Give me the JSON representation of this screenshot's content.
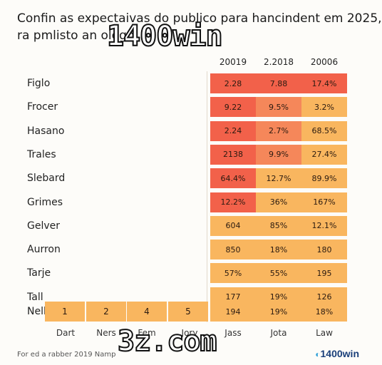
{
  "title": {
    "line1": "Confin as expectaivas do publico para hancindent em 2025,",
    "line2": "ra pmlisto an olegn"
  },
  "watermarks": {
    "top": "1400win",
    "bottom": "3z.com"
  },
  "footer_note": "For ed a rabber 2019 Namp",
  "logo": {
    "mark": "◐",
    "text": "1400win"
  },
  "colors": {
    "dark": "#f2614a",
    "mid": "#f5875a",
    "light": "#f9b65f",
    "cell_text": "#2a1a10"
  },
  "chart_data": {
    "type": "heatmap",
    "title": "Confin as expectaivas do publico para hancindent em 2025, ra pmlisto an olegn",
    "columns": [
      "20019",
      "2.2018",
      "20006"
    ],
    "rows": [
      {
        "label": "Figlo",
        "values": [
          "2.28",
          "7.88",
          "17.4%"
        ],
        "shade": [
          "dark",
          "dark",
          "dark"
        ]
      },
      {
        "label": "Frocer",
        "values": [
          "9.22",
          "9.5%",
          "3.2%"
        ],
        "shade": [
          "dark",
          "mid",
          "light"
        ]
      },
      {
        "label": "Hasano",
        "values": [
          "2.24",
          "2.7%",
          "68.5%"
        ],
        "shade": [
          "dark",
          "mid",
          "light"
        ]
      },
      {
        "label": "Trales",
        "values": [
          "2138",
          "9.9%",
          "27.4%"
        ],
        "shade": [
          "dark",
          "mid",
          "light"
        ]
      },
      {
        "label": "Slebard",
        "values": [
          "64.4%",
          "12.7%",
          "89.9%"
        ],
        "shade": [
          "dark",
          "light",
          "light"
        ]
      },
      {
        "label": "Grimes",
        "values": [
          "12.2%",
          "36%",
          "167%"
        ],
        "shade": [
          "dark",
          "light",
          "light"
        ]
      },
      {
        "label": "Gelver",
        "values": [
          "604",
          "85%",
          "12.1%"
        ],
        "shade": [
          "light",
          "light",
          "light"
        ]
      },
      {
        "label": "Aurron",
        "values": [
          "850",
          "18%",
          "180"
        ],
        "shade": [
          "light",
          "light",
          "light"
        ]
      },
      {
        "label": "Tarje",
        "values": [
          "57%",
          "55%",
          "195"
        ],
        "shade": [
          "light",
          "light",
          "light"
        ]
      },
      {
        "label": "Tall",
        "values": [
          "177",
          "19%",
          "126"
        ],
        "shade": [
          "light",
          "light",
          "light"
        ]
      },
      {
        "label": "Nell",
        "values": [
          "194",
          "19%",
          "18%"
        ],
        "shade": [
          "light",
          "light",
          "light"
        ]
      }
    ],
    "bottom_row": {
      "label": "Nell",
      "values": [
        "1",
        "2",
        "4",
        "5"
      ]
    },
    "x_labels": [
      "Dart",
      "Ners",
      "Fem",
      "Jory",
      "Jass",
      "Jota",
      "Law"
    ]
  }
}
